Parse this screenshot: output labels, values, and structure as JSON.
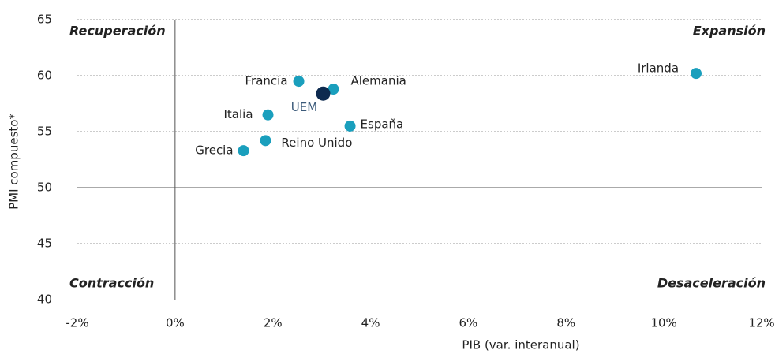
{
  "chart_data": {
    "type": "scatter",
    "xlabel": "PIB (var. interanual)",
    "ylabel": "PMI compuesto*",
    "annotations": [
      "Recuperación",
      "Expansión",
      "Contracción",
      "Desaceleración"
    ],
    "labels": [
      "Francia",
      "Alemania",
      "UEM",
      "Irlanda",
      "Italia",
      "España",
      "Reino Unido",
      "Grecia"
    ],
    "x": [
      2.53,
      3.24,
      3.03,
      10.66,
      1.9,
      3.58,
      1.85,
      1.4
    ],
    "y": [
      59.5,
      58.8,
      58.4,
      60.2,
      56.5,
      55.5,
      54.2,
      53.3
    ],
    "colors": [
      "#1a9fbd",
      "#1a9fbd",
      "#0d2a4f",
      "#1a9fbd",
      "#1a9fbd",
      "#1a9fbd",
      "#1a9fbd",
      "#1a9fbd"
    ],
    "xlim": [
      -2,
      12
    ],
    "xticks": [
      {
        "value": -2,
        "label": "-2%"
      },
      {
        "value": 0,
        "label": "0%"
      },
      {
        "value": 2,
        "label": "2%"
      },
      {
        "value": 4,
        "label": "4%"
      },
      {
        "value": 6,
        "label": "6%"
      },
      {
        "value": 8,
        "label": "8%"
      },
      {
        "value": 10,
        "label": "10%"
      },
      {
        "value": 12,
        "label": "12%"
      }
    ],
    "ylim": [
      40,
      65
    ],
    "yticks": [
      40,
      45,
      50,
      55,
      60,
      65
    ],
    "grid": true
  }
}
